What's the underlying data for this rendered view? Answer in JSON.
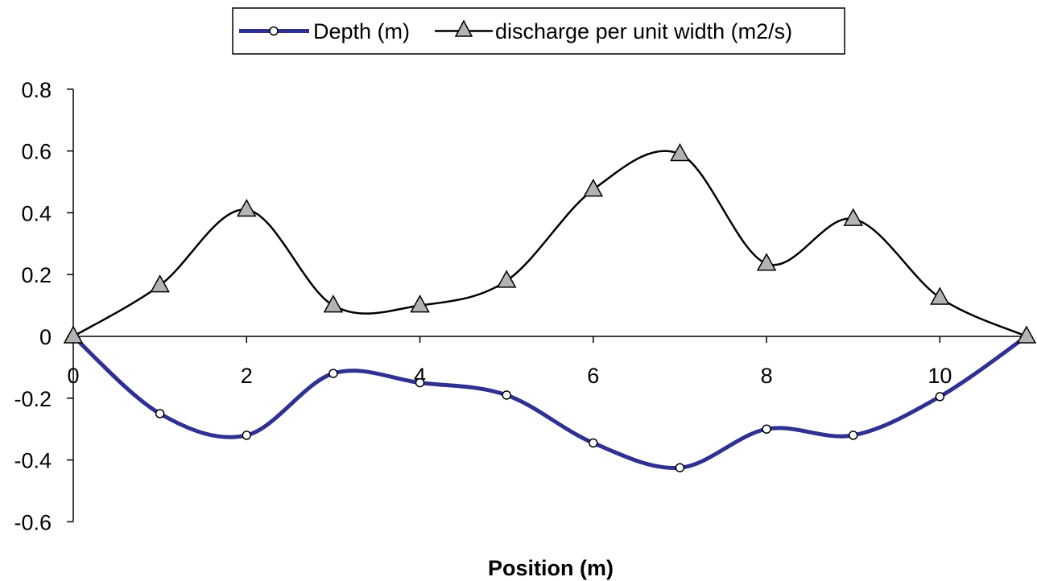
{
  "chart_data": {
    "type": "line",
    "title": "",
    "xlabel": "Position (m)",
    "ylabel": "",
    "xlim": [
      0,
      11
    ],
    "ylim": [
      -0.6,
      0.8
    ],
    "x_ticks": [
      0,
      2,
      4,
      6,
      8,
      10
    ],
    "x_tick_labels": [
      "0",
      "2",
      "4",
      "6",
      "8",
      "10"
    ],
    "y_ticks": [
      0.8,
      0.6,
      0.4,
      0.2,
      0,
      -0.2,
      -0.4,
      -0.6
    ],
    "y_tick_labels": [
      "0.8",
      "0.6",
      "0.4",
      "0.2",
      "0",
      "-0.2",
      "-0.4",
      "-0.6"
    ],
    "grid": false,
    "legend_position": "top",
    "x": [
      0,
      1,
      2,
      3,
      4,
      5,
      6,
      7,
      8,
      9,
      10,
      11
    ],
    "series": [
      {
        "name": "Depth (m)",
        "color": "#2e3192",
        "marker": "circle",
        "smooth": true,
        "values": [
          0,
          -0.25,
          -0.32,
          -0.12,
          -0.15,
          -0.19,
          -0.345,
          -0.425,
          -0.3,
          -0.32,
          -0.195,
          0
        ]
      },
      {
        "name": "discharge per unit width (m2/s)",
        "color": "#000000",
        "marker": "triangle",
        "marker_fill": "#b3b3b3",
        "smooth": true,
        "values": [
          0,
          0.165,
          0.41,
          0.1,
          0.1,
          0.18,
          0.475,
          0.59,
          0.235,
          0.38,
          0.125,
          0
        ]
      }
    ]
  }
}
